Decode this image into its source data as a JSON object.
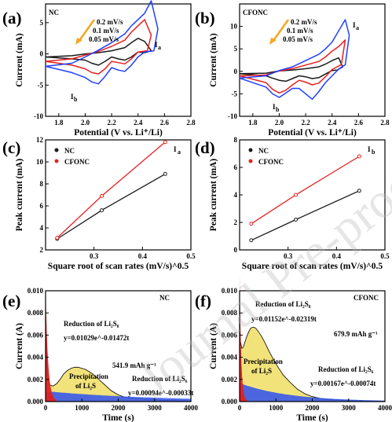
{
  "colors": {
    "nc": "#1a1a1a",
    "cfonc": "#e82020",
    "blue": "#1f3fff",
    "orange_arrow": "#f5a623",
    "yellow": "#f2e27a",
    "blue_fill": "#3a5ae8",
    "red_fill": "#e02020"
  },
  "chart_data": [
    {
      "panel": "(a)",
      "type": "line",
      "tag": "NC",
      "xlabel": "Potential (V vs. Li⁺/Li)",
      "ylabel": "Current (mA)",
      "xlim": [
        1.7,
        2.8
      ],
      "ylim": [
        -10,
        8
      ],
      "xticks": [
        "1.8",
        "2.0",
        "2.2",
        "2.4",
        "2.6",
        "2.8"
      ],
      "yticks": [
        "-10",
        "-5",
        "0",
        "5"
      ],
      "legend": [
        "0.2 mV/s",
        "0.1 mV/s",
        "0.05 mV/s"
      ],
      "peak_labels": [
        "Ia",
        "Ib"
      ],
      "series": [
        {
          "name": "0.05 mV/s",
          "color": "#1a1a1a",
          "x": [
            1.7,
            1.9,
            2.0,
            2.1,
            2.2,
            2.3,
            2.35,
            2.4,
            2.45,
            2.5,
            2.45,
            2.4,
            2.35,
            2.3,
            2.25,
            2.2,
            2.15,
            2.1,
            2.05,
            2.0,
            1.9,
            1.7
          ],
          "y": [
            -0.5,
            -0.3,
            0.0,
            0.2,
            0.5,
            1.0,
            1.8,
            2.5,
            2.0,
            0.5,
            0.2,
            0.3,
            -0.5,
            -1.0,
            -0.8,
            -0.5,
            -1.2,
            -1.8,
            -1.5,
            -1.0,
            -0.8,
            -0.5
          ]
        },
        {
          "name": "0.1 mV/s",
          "color": "#e82020",
          "x": [
            1.7,
            1.9,
            2.0,
            2.1,
            2.2,
            2.3,
            2.35,
            2.4,
            2.45,
            2.5,
            2.47,
            2.4,
            2.35,
            2.3,
            2.25,
            2.2,
            2.15,
            2.1,
            2.05,
            2.0,
            1.9,
            1.7
          ],
          "y": [
            -1.2,
            -0.8,
            -0.2,
            0.4,
            1.2,
            2.2,
            3.5,
            4.5,
            5.5,
            3.0,
            0.5,
            0.3,
            -0.8,
            -1.6,
            -1.4,
            -1.2,
            -2.4,
            -3.2,
            -3.0,
            -2.4,
            -1.8,
            -1.2
          ]
        },
        {
          "name": "0.2 mV/s",
          "color": "#1f3fff",
          "x": [
            1.7,
            1.9,
            2.0,
            2.1,
            2.2,
            2.3,
            2.35,
            2.4,
            2.45,
            2.5,
            2.55,
            2.52,
            2.45,
            2.4,
            2.35,
            2.3,
            2.25,
            2.2,
            2.15,
            2.1,
            2.05,
            2.0,
            1.9,
            1.7
          ],
          "y": [
            -2.0,
            -1.5,
            -0.5,
            0.6,
            1.8,
            3.2,
            4.5,
            5.5,
            6.5,
            8.5,
            4.0,
            0.5,
            0.3,
            -0.5,
            -1.8,
            -2.8,
            -2.6,
            -2.2,
            -3.6,
            -4.8,
            -4.5,
            -3.8,
            -3.0,
            -2.0
          ]
        }
      ]
    },
    {
      "panel": "(b)",
      "type": "line",
      "tag": "CFONC",
      "xlabel": "Potential (V vs. Li⁺/Li)",
      "ylabel": "Current (mA)",
      "xlim": [
        1.7,
        2.8
      ],
      "ylim": [
        -10,
        15
      ],
      "xticks": [
        "1.8",
        "2.0",
        "2.2",
        "2.4",
        "2.6",
        "2.8"
      ],
      "yticks": [
        "-10",
        "-5",
        "0",
        "5",
        "10"
      ],
      "legend": [
        "0.2 mV/s",
        "0.1 mV/s",
        "0.05 mV/s"
      ],
      "peak_labels": [
        "Ia",
        "Ib"
      ],
      "series": [
        {
          "name": "0.05 mV/s",
          "color": "#1a1a1a",
          "x": [
            1.7,
            1.9,
            2.0,
            2.1,
            2.2,
            2.3,
            2.35,
            2.4,
            2.45,
            2.48,
            2.44,
            2.4,
            2.35,
            2.3,
            2.25,
            2.2,
            2.15,
            2.1,
            2.05,
            2.0,
            1.95,
            1.9,
            1.7
          ],
          "y": [
            -0.5,
            -0.4,
            0.1,
            0.3,
            0.6,
            1.0,
            1.6,
            2.4,
            3.0,
            1.0,
            0.3,
            0.2,
            -0.6,
            -1.4,
            -1.6,
            -1.2,
            -1.0,
            -1.6,
            -2.2,
            -2.0,
            -1.5,
            -1.0,
            -0.5
          ]
        },
        {
          "name": "0.1 mV/s",
          "color": "#e82020",
          "x": [
            1.7,
            1.9,
            2.0,
            2.1,
            2.2,
            2.3,
            2.35,
            2.4,
            2.45,
            2.5,
            2.47,
            2.4,
            2.35,
            2.3,
            2.25,
            2.2,
            2.15,
            2.1,
            2.05,
            2.0,
            1.95,
            1.9,
            1.7
          ],
          "y": [
            -1.0,
            -0.8,
            0.1,
            0.6,
            1.4,
            2.2,
            3.2,
            4.5,
            5.5,
            7.0,
            1.5,
            0.4,
            -1.2,
            -2.6,
            -3.0,
            -2.4,
            -2.0,
            -3.0,
            -4.2,
            -4.8,
            -4.0,
            -2.5,
            -1.0
          ]
        },
        {
          "name": "0.2 mV/s",
          "color": "#1f3fff",
          "x": [
            1.7,
            1.9,
            2.0,
            2.1,
            2.2,
            2.3,
            2.35,
            2.4,
            2.45,
            2.5,
            2.53,
            2.5,
            2.45,
            2.4,
            2.35,
            2.3,
            2.25,
            2.2,
            2.15,
            2.1,
            2.05,
            2.0,
            1.95,
            1.9,
            1.7
          ],
          "y": [
            -1.5,
            -1.0,
            0.2,
            1.0,
            2.4,
            3.8,
            5.0,
            6.5,
            9.0,
            11.5,
            8.0,
            1.5,
            0.5,
            -1.0,
            -2.5,
            -4.5,
            -6.2,
            -5.0,
            -3.8,
            -3.8,
            -4.8,
            -5.8,
            -5.0,
            -3.5,
            -1.5
          ]
        }
      ]
    },
    {
      "panel": "(c)",
      "type": "line",
      "peak_label": "Ia",
      "xlabel": "Square root of scan rates (mV/s)^0.5",
      "ylabel": "Peak current (mA)",
      "xlim": [
        0.2,
        0.5
      ],
      "ylim": [
        2,
        12
      ],
      "xticks": [
        "0.3",
        "0.4",
        "0.5"
      ],
      "yticks": [
        "2",
        "4",
        "6",
        "8",
        "10",
        "12"
      ],
      "series": [
        {
          "name": "NC",
          "color": "#1a1a1a",
          "x": [
            0.224,
            0.316,
            0.447
          ],
          "y": [
            3.0,
            5.6,
            8.9
          ]
        },
        {
          "name": "CFONC",
          "color": "#e82020",
          "x": [
            0.224,
            0.316,
            0.447
          ],
          "y": [
            3.1,
            6.9,
            11.8
          ]
        }
      ]
    },
    {
      "panel": "(d)",
      "type": "line",
      "peak_label": "Ib",
      "xlabel": "Square root of scan rates (mV/s)^0.5",
      "ylabel": "Peak current (mA)",
      "xlim": [
        0.2,
        0.5
      ],
      "ylim": [
        0,
        8
      ],
      "xticks": [
        "0.3",
        "0.4",
        "0.5"
      ],
      "yticks": [
        "0",
        "2",
        "4",
        "6",
        "8"
      ],
      "series": [
        {
          "name": "NC",
          "color": "#1a1a1a",
          "x": [
            0.224,
            0.316,
            0.447
          ],
          "y": [
            0.7,
            2.2,
            4.3
          ]
        },
        {
          "name": "CFONC",
          "color": "#e82020",
          "x": [
            0.224,
            0.316,
            0.447
          ],
          "y": [
            1.9,
            4.0,
            6.8
          ]
        }
      ]
    },
    {
      "panel": "(e)",
      "type": "area",
      "tag": "NC",
      "xlabel": "Time (s)",
      "ylabel": "Current (A)",
      "xlim": [
        0,
        4000
      ],
      "ylim": [
        0,
        0.01
      ],
      "xticks": [
        "0",
        "1000",
        "2000",
        "3000",
        "4000"
      ],
      "yticks": [
        "0.000",
        "0.002",
        "0.004",
        "0.006",
        "0.008",
        "0.010"
      ],
      "annotations": {
        "red_title": "Reduction of Li₂S₈",
        "red_eq": "y=0.01029e^-0.01472t",
        "capacity": "541.9 mAh g⁻¹",
        "yellow_title": "Precipitation",
        "yellow_title2": "of Li₂S",
        "blue_title": "Reduction of Li₂S₆",
        "blue_eq": "y=0.00094e^-0.00033t"
      },
      "total": {
        "x": [
          0,
          20,
          60,
          120,
          200,
          300,
          400,
          500,
          600,
          700,
          800,
          900,
          1000,
          1100,
          1200,
          1300,
          1400,
          1600,
          1800,
          2000,
          2200,
          2400,
          2600,
          2800,
          3000,
          3200,
          3400,
          3600,
          3800,
          4000
        ],
        "y": [
          0.0072,
          0.0045,
          0.0022,
          0.0015,
          0.0014,
          0.0016,
          0.002,
          0.0025,
          0.0028,
          0.003,
          0.0031,
          0.0031,
          0.003,
          0.0029,
          0.0027,
          0.0025,
          0.0022,
          0.0016,
          0.001,
          0.0006,
          0.00038,
          0.0003,
          0.00024,
          0.0002,
          0.00016,
          0.00012,
          0.0001,
          7e-05,
          5e-05,
          4e-05
        ]
      },
      "fit_red": {
        "a": 0.01029,
        "k": 0.01472
      },
      "fit_blue": {
        "a": 0.00094,
        "k": 0.00033
      }
    },
    {
      "panel": "(f)",
      "type": "area",
      "tag": "CFONC",
      "xlabel": "Time (s)",
      "ylabel": "Current (A)",
      "xlim": [
        0,
        4000
      ],
      "ylim": [
        0,
        0.01
      ],
      "xticks": [
        "0",
        "1000",
        "2000",
        "3000",
        "4000"
      ],
      "yticks": [
        "0.000",
        "0.002",
        "0.004",
        "0.006",
        "0.008",
        "0.010"
      ],
      "annotations": {
        "red_title": "Reduction of Li₂S₈",
        "red_eq": "y=0.01152e^-0.02319t",
        "capacity": "679.9 mAh g⁻¹",
        "yellow_title": "Precipitation",
        "yellow_title2": "of Li₂S",
        "blue_title": "Reduction of Li₂S₆",
        "blue_eq": "y=0.00167e^-0.00074t"
      },
      "total": {
        "x": [
          0,
          20,
          60,
          100,
          150,
          200,
          250,
          300,
          350,
          400,
          450,
          500,
          600,
          700,
          800,
          900,
          1000,
          1200,
          1400,
          1600,
          1800,
          2000,
          2200,
          2400,
          2600,
          2800,
          3000,
          3200,
          3500,
          4000
        ],
        "y": [
          0.0075,
          0.0055,
          0.0048,
          0.0049,
          0.0054,
          0.0059,
          0.0063,
          0.0066,
          0.0067,
          0.0067,
          0.0066,
          0.0064,
          0.0059,
          0.0053,
          0.0046,
          0.004,
          0.0034,
          0.0024,
          0.0017,
          0.0011,
          0.0007,
          0.00045,
          0.0003,
          0.0002,
          0.00016,
          0.00012,
          0.0001,
          8e-05,
          6e-05,
          4e-05
        ]
      },
      "fit_red": {
        "a": 0.01152,
        "k": 0.02319
      },
      "fit_blue": {
        "a": 0.00167,
        "k": 0.00074
      }
    }
  ],
  "watermark": "Journal Pre-proofs"
}
